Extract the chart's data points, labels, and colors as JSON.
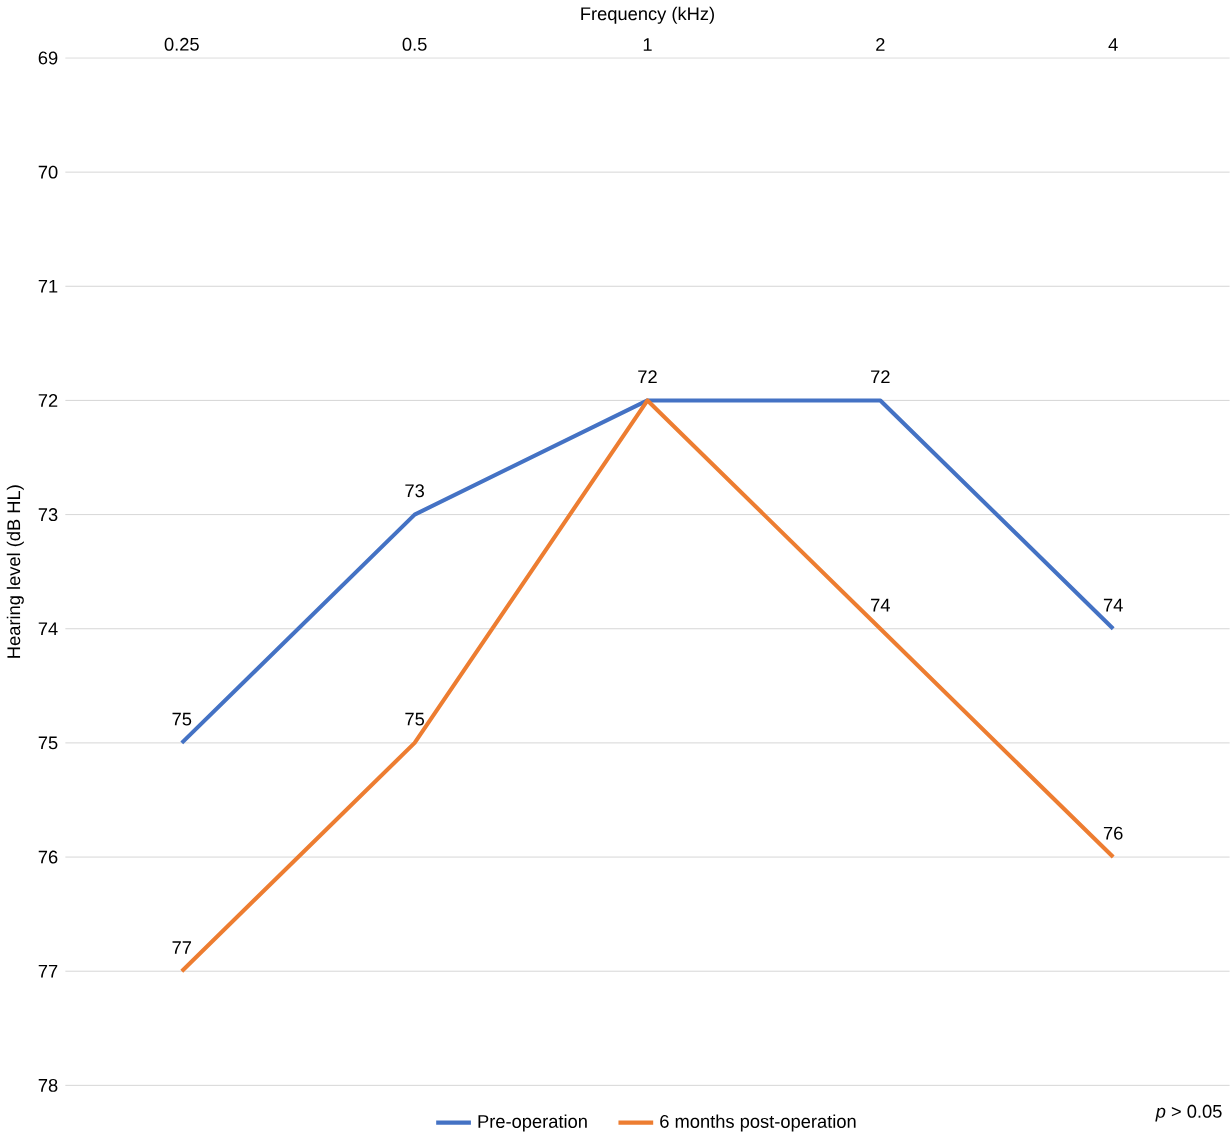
{
  "chart_data": {
    "type": "line",
    "xlabel": "Frequency (kHz)",
    "ylabel": "Hearing level (dB HL)",
    "categories": [
      "0.25",
      "0.5",
      "1",
      "2",
      "4"
    ],
    "series": [
      {
        "name": "Pre-operation",
        "color": "#4472c4",
        "values": [
          75,
          73,
          72,
          72,
          74
        ],
        "value_labels": [
          "75",
          "73",
          "72",
          "72",
          "74"
        ]
      },
      {
        "name": "6 months post-operation",
        "color": "#ed7d31",
        "values": [
          77,
          75,
          72,
          74,
          76
        ],
        "value_labels": [
          "77",
          "75",
          null,
          "74",
          "76"
        ]
      }
    ],
    "ylim": [
      78,
      69
    ],
    "yticks": [
      69,
      70,
      71,
      72,
      73,
      74,
      75,
      76,
      77,
      78
    ],
    "grid": "y",
    "legend": "bottom",
    "marker": "none",
    "line_style": "solid",
    "annotations": [
      {
        "text": "*p* > 0.05"
      }
    ]
  }
}
